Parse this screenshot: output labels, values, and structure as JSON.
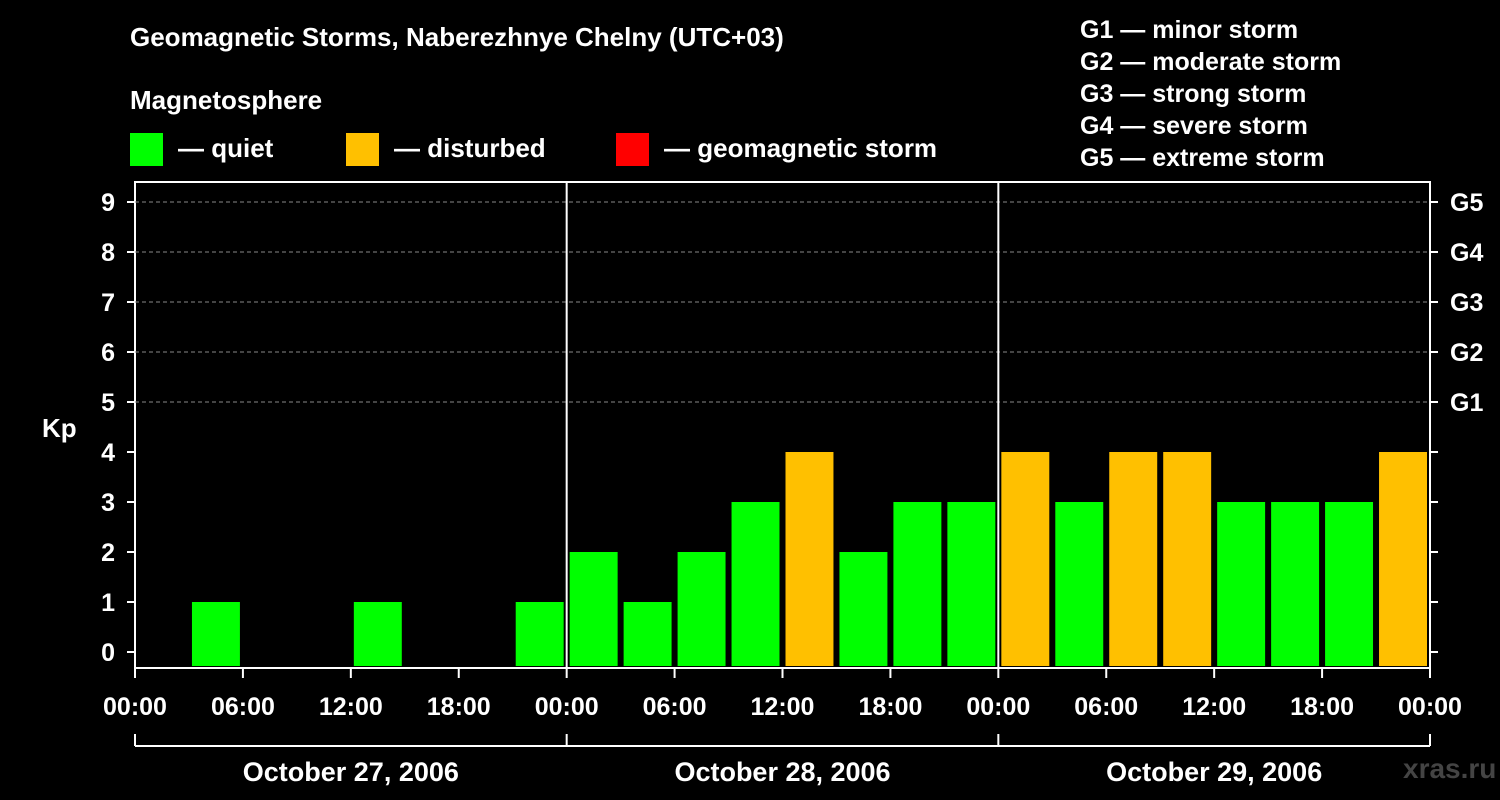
{
  "chart_data": {
    "type": "bar",
    "title": "Geomagnetic Storms, Naberezhnye Chelny (UTC+03)",
    "subtitle": "Magnetosphere",
    "ylabel": "Kp",
    "ylim": [
      0,
      9
    ],
    "yticks": [
      "0",
      "1",
      "2",
      "3",
      "4",
      "5",
      "6",
      "7",
      "8",
      "9"
    ],
    "right_axis_labels": [
      {
        "value": 5,
        "label": "G1"
      },
      {
        "value": 6,
        "label": "G2"
      },
      {
        "value": 7,
        "label": "G3"
      },
      {
        "value": 8,
        "label": "G4"
      },
      {
        "value": 9,
        "label": "G5"
      }
    ],
    "x_tick_labels": [
      "00:00",
      "06:00",
      "12:00",
      "18:00",
      "00:00",
      "06:00",
      "12:00",
      "18:00",
      "00:00",
      "06:00",
      "12:00",
      "18:00",
      "00:00"
    ],
    "days": [
      "October 27, 2006",
      "October 28, 2006",
      "October 29, 2006"
    ],
    "interval_hours": 3,
    "values": [
      0,
      1,
      0,
      0,
      1,
      0,
      0,
      1,
      2,
      1,
      2,
      3,
      4,
      2,
      3,
      3,
      4,
      3,
      4,
      4,
      3,
      3,
      3,
      4
    ],
    "legend": [
      {
        "label": "— quiet",
        "color": "#00ff00"
      },
      {
        "label": "— disturbed",
        "color": "#ffc000"
      },
      {
        "label": "— geomagnetic storm",
        "color": "#ff0000"
      }
    ],
    "storm_scale": [
      "G1 — minor storm",
      "G2 — moderate storm",
      "G3 — strong storm",
      "G4 — severe storm",
      "G5 — extreme storm"
    ],
    "colors": {
      "quiet": "#00ff00",
      "disturbed": "#ffc000",
      "storm": "#ff0000",
      "background": "#000000",
      "axis": "#ffffff",
      "grid": "#888888"
    }
  },
  "watermark": "xras.ru"
}
